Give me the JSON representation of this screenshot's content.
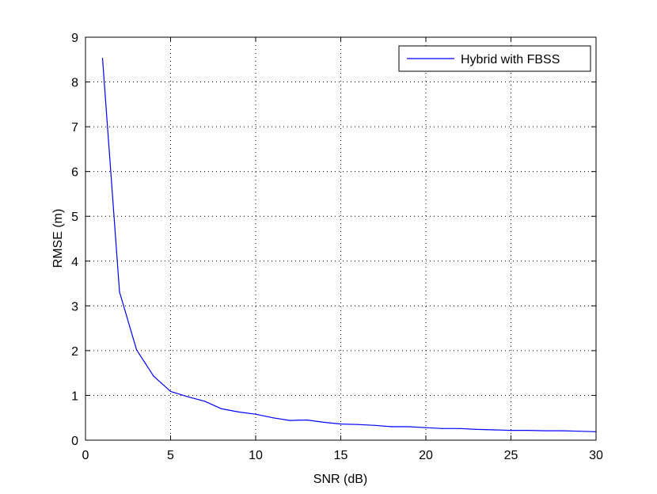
{
  "chart_data": {
    "type": "line",
    "title": "",
    "xlabel": "SNR (dB)",
    "ylabel": "RMSE (m)",
    "xlim": [
      0,
      30
    ],
    "ylim": [
      0,
      9
    ],
    "x_ticks": [
      0,
      5,
      10,
      15,
      20,
      25,
      30
    ],
    "y_ticks": [
      0,
      1,
      2,
      3,
      4,
      5,
      6,
      7,
      8,
      9
    ],
    "grid": true,
    "legend_position": "top-right",
    "series": [
      {
        "name": "Hybrid with FBSS",
        "color": "#0000ff",
        "x": [
          1,
          2,
          3,
          4,
          5,
          6,
          7,
          8,
          9,
          10,
          11,
          12,
          13,
          14,
          15,
          16,
          17,
          18,
          19,
          20,
          21,
          22,
          23,
          24,
          25,
          26,
          27,
          28,
          29,
          30
        ],
        "y": [
          8.53,
          3.31,
          2.02,
          1.43,
          1.09,
          0.97,
          0.87,
          0.7,
          0.63,
          0.58,
          0.5,
          0.44,
          0.45,
          0.4,
          0.36,
          0.35,
          0.33,
          0.3,
          0.3,
          0.28,
          0.26,
          0.26,
          0.24,
          0.23,
          0.22,
          0.22,
          0.21,
          0.21,
          0.2,
          0.19
        ]
      }
    ]
  }
}
